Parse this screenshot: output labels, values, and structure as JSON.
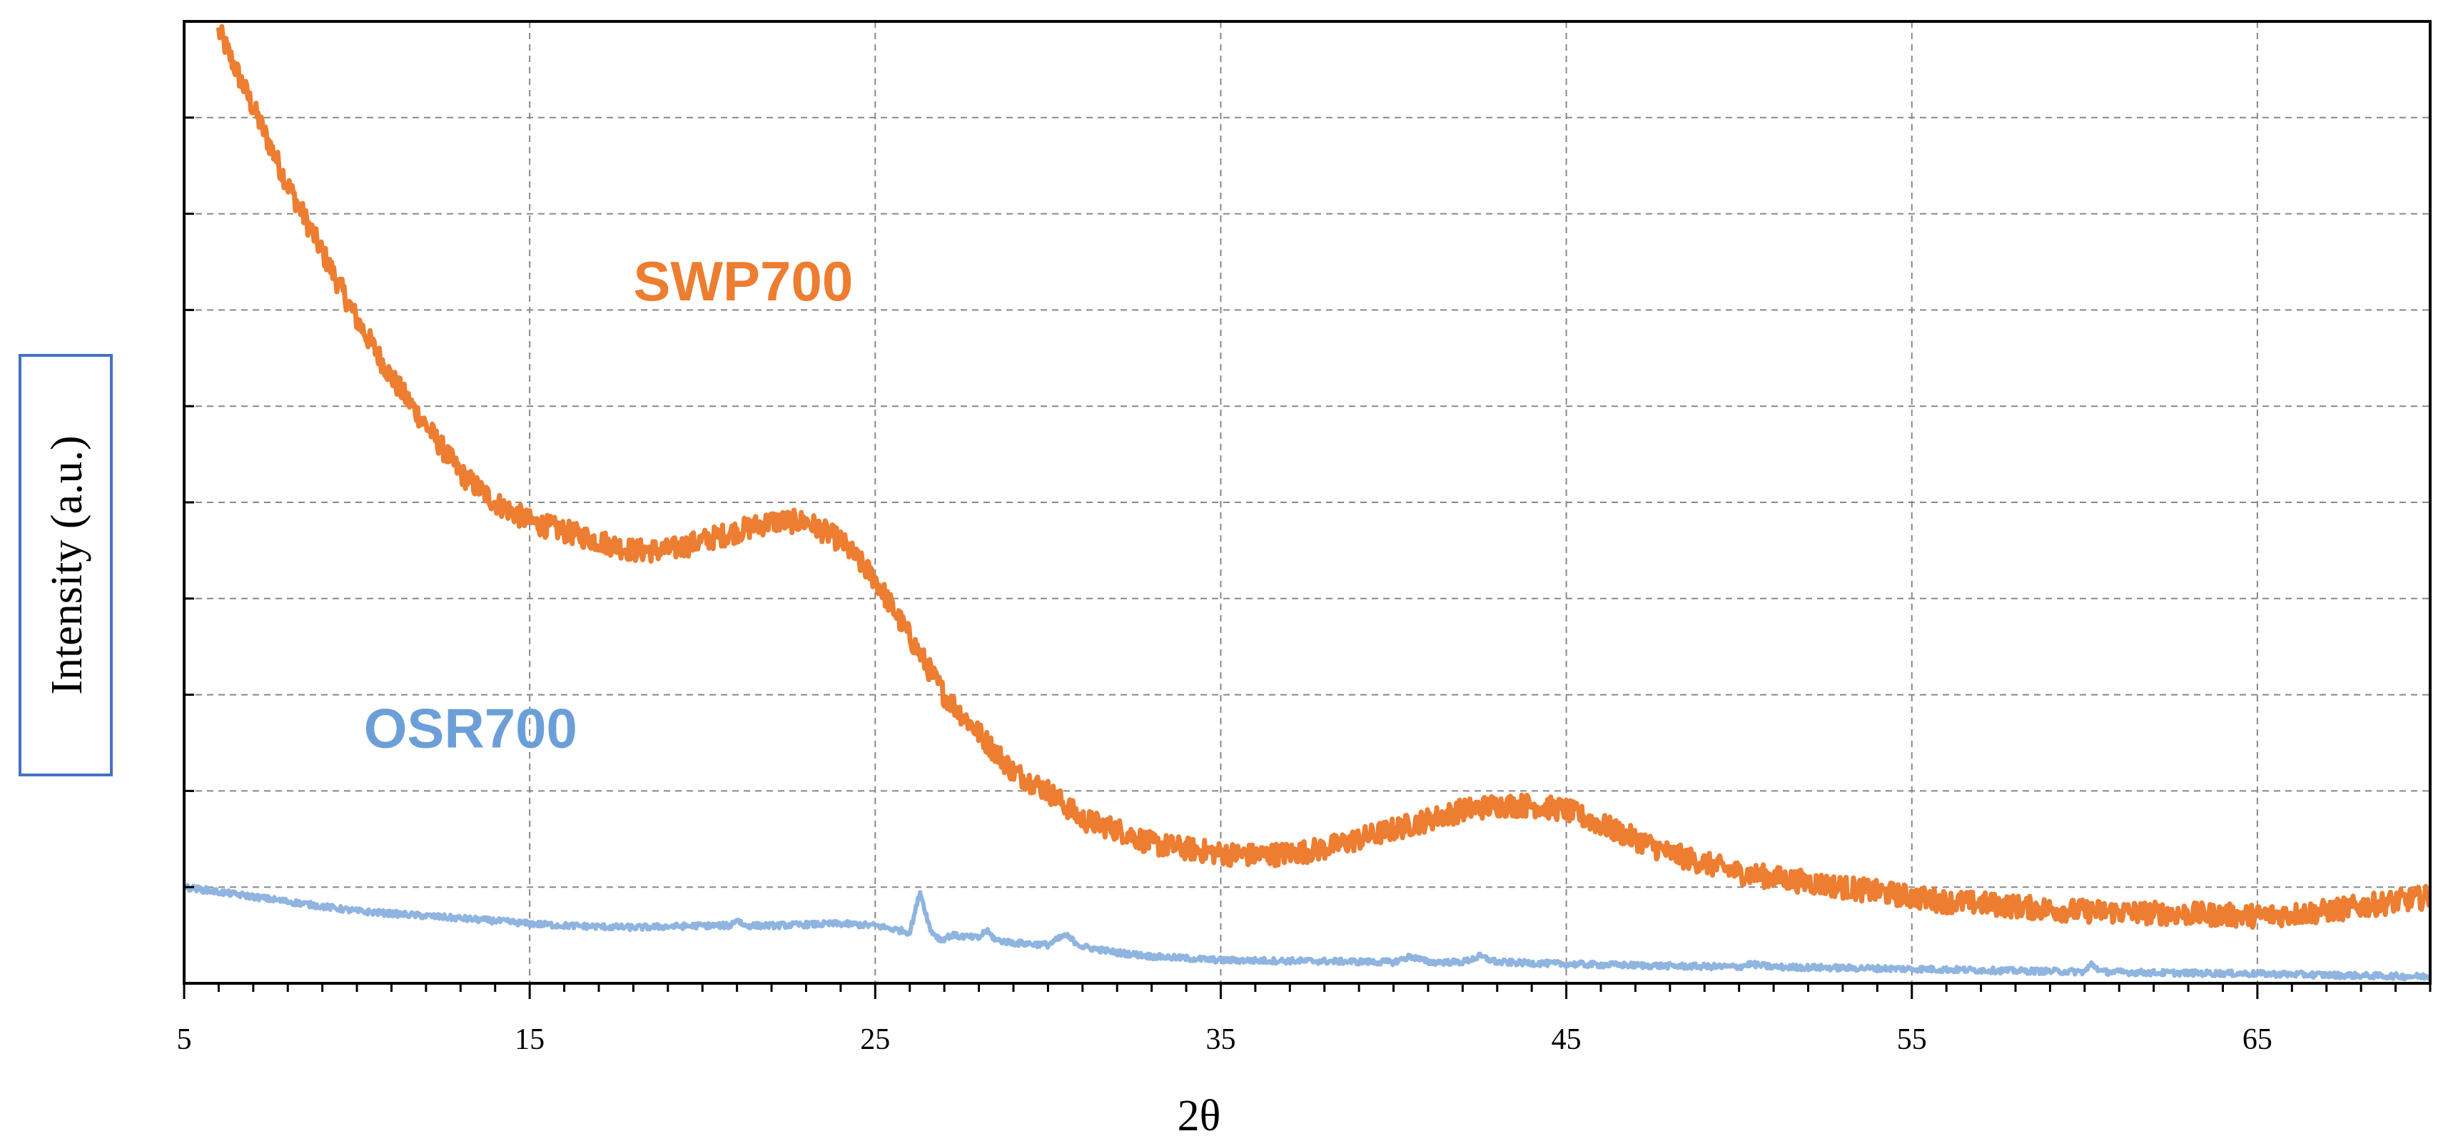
{
  "chart_data": {
    "type": "line",
    "title": "",
    "xlabel": "2θ",
    "ylabel": "Intensity (a.u.)",
    "xlim": [
      5,
      70
    ],
    "ylim": [
      0,
      100
    ],
    "x_ticks": [
      5,
      15,
      25,
      35,
      45,
      55,
      65
    ],
    "x_minor_step": 1,
    "y_gridlines": 10,
    "grid": true,
    "y_tick_labels": false,
    "series": [
      {
        "name": "SWP700",
        "color": "#ED7D31",
        "noise": 1.2,
        "x": [
          6,
          6.5,
          7,
          7.5,
          8,
          9,
          10,
          11,
          12,
          13,
          14,
          15,
          16,
          17,
          18,
          19,
          20,
          21,
          22,
          23,
          24,
          25,
          26,
          27,
          28,
          29,
          30,
          31,
          32,
          33,
          34,
          35,
          36,
          37,
          38,
          39,
          40,
          41,
          42,
          43,
          44,
          45,
          46,
          47,
          48,
          49,
          50,
          51,
          52,
          53,
          54,
          55,
          56,
          57,
          58,
          59,
          60,
          61,
          62,
          63,
          64,
          65,
          66,
          67,
          68,
          69,
          70
        ],
        "values": [
          99,
          95,
          91,
          87,
          83,
          76,
          69,
          63,
          58,
          53,
          50,
          48,
          47,
          46,
          45,
          45,
          46,
          47,
          48,
          48,
          46,
          42,
          36,
          30,
          26,
          22,
          20,
          17,
          16,
          14.5,
          14,
          13.5,
          13.3,
          13.5,
          14,
          15,
          16,
          17,
          18,
          18.5,
          18.5,
          18,
          16.5,
          15,
          13.5,
          12.5,
          11.5,
          11,
          10.5,
          10,
          9.5,
          9,
          8.5,
          8.3,
          8,
          7.7,
          7.5,
          7.4,
          7.3,
          7.2,
          7.1,
          7,
          7.2,
          7.5,
          8,
          8.5,
          9
        ]
      },
      {
        "name": "OSR700",
        "color": "#8FB4E0",
        "noise": 0.3,
        "x": [
          5,
          6,
          8,
          10,
          12,
          14,
          15,
          16,
          18,
          20,
          20.8,
          21,
          21.2,
          22,
          24,
          25,
          26,
          26.3,
          26.6,
          26.9,
          27.2,
          28,
          28.2,
          28.5,
          29,
          30,
          30.5,
          31,
          32,
          33,
          35,
          38,
          40,
          40.5,
          41,
          42,
          42.5,
          43,
          45,
          48,
          50,
          50.3,
          51,
          55,
          58,
          60,
          60.2,
          60.5,
          62,
          65,
          68,
          70
        ],
        "values": [
          10,
          9.5,
          8.5,
          7.5,
          7,
          6.5,
          6.2,
          6,
          5.8,
          6,
          6,
          6.7,
          6,
          6,
          6.2,
          6,
          5.3,
          9.5,
          5.5,
          4.5,
          5,
          4.7,
          5.5,
          4.5,
          4.2,
          4,
          5,
          3.8,
          3.2,
          2.8,
          2.4,
          2.3,
          2.2,
          2.8,
          2.2,
          2.2,
          2.8,
          2.2,
          2,
          1.8,
          1.7,
          2,
          1.7,
          1.5,
          1.3,
          1.2,
          2,
          1.2,
          1.1,
          1,
          0.8,
          0.7
        ]
      }
    ],
    "annotations": [
      {
        "text": "SWP700",
        "x": 18,
        "y": 71,
        "color": "#ED7D31"
      },
      {
        "text": "OSR700",
        "x": 10.2,
        "y": 24.5,
        "color": "#6C9FD8"
      }
    ]
  }
}
